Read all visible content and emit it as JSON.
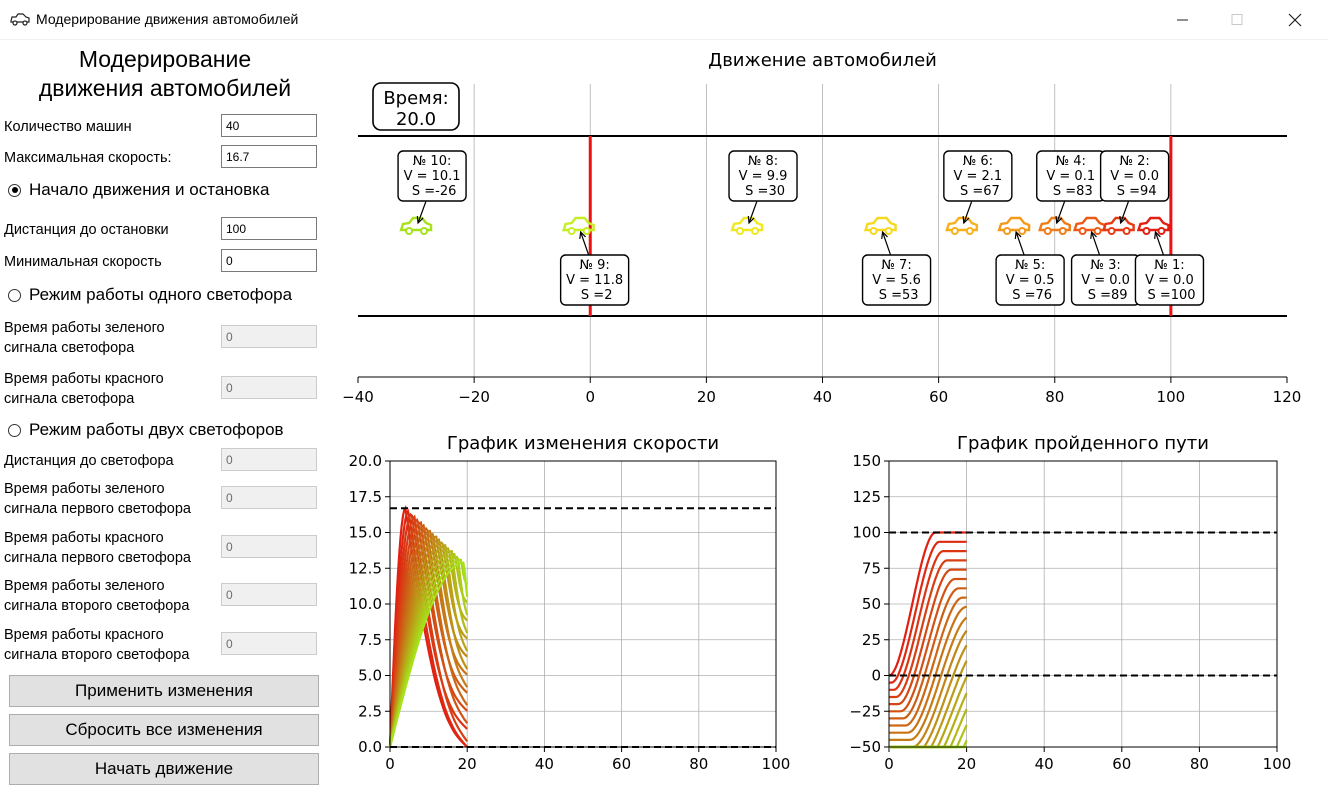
{
  "window": {
    "title": "Модерирование движения автомобилей",
    "icon": "car-icon",
    "controls": [
      "minimize-icon",
      "maximize-icon",
      "close-icon"
    ]
  },
  "panel": {
    "title": "Модерирование\nдвижения автомобилей",
    "car_count": {
      "label": "Количество машин",
      "value": "40"
    },
    "max_speed": {
      "label": "Максимальная скорость:",
      "value": "16.7"
    },
    "mode1": {
      "label": "Начало движения и остановка",
      "selected": true
    },
    "stop_distance": {
      "label": "Дистанция до остановки",
      "value": "100"
    },
    "min_speed": {
      "label": "Минимальная скорость",
      "value": "0"
    },
    "mode2": {
      "label": "Режим работы одного светофора",
      "selected": false
    },
    "green_time": {
      "label": "Время работы зеленого\nсигнала светофора",
      "value": "0"
    },
    "red_time": {
      "label": "Время работы красного\n сигнала светофора",
      "value": "0"
    },
    "mode3": {
      "label": "Режим работы двух светофоров",
      "selected": false
    },
    "light_distance": {
      "label": "Дистанция до светофора",
      "value": "0"
    },
    "green1_time": {
      "label": "Время работы зеленого\nсигнала первого светофора",
      "value": "0"
    },
    "red1_time": {
      "label": "Время работы красного\nсигнала первого светофора",
      "value": "0"
    },
    "green2_time": {
      "label": "Время работы зеленого\nсигнала второго светофора",
      "value": "0"
    },
    "red2_time": {
      "label": "Время работы красного\nсигнала второго светофора",
      "value": "0"
    },
    "apply_label": "Применить изменения",
    "reset_label": "Сбросить все изменения",
    "start_label": "Начать движение"
  },
  "chart_data": [
    {
      "type": "scatter",
      "title": "Движение автомобилей",
      "time_box": "Время:\n20.0",
      "xlim": [
        -40,
        120
      ],
      "x_ticks": [
        "−40",
        "−20",
        "0",
        "20",
        "40",
        "60",
        "80",
        "100",
        "120"
      ],
      "grid": "vertical",
      "road_edges": "top and bottom black lines",
      "stop_lines": [
        0,
        100
      ],
      "cars": [
        {
          "x": -30,
          "color": "#a6e21a",
          "label": "№ 10:\nV = 10.1\n S =-26",
          "above": true
        },
        {
          "x": -2,
          "color": "#c6ee22",
          "label": "№ 9:\nV = 11.8\n S =2",
          "above": false
        },
        {
          "x": 27,
          "color": "#f0e820",
          "label": "№ 8:\nV = 9.9\n S =30",
          "above": true
        },
        {
          "x": 50,
          "color": "#f6d81e",
          "label": "№ 7:\nV = 5.6\n S =53",
          "above": false
        },
        {
          "x": 64,
          "color": "#f6b11c",
          "label": "№ 6:\nV = 2.1\n S =67",
          "above": true
        },
        {
          "x": 73,
          "color": "#f49a1a",
          "label": "№ 5:\nV = 0.5\n S =76",
          "above": false
        },
        {
          "x": 80,
          "color": "#f07c18",
          "label": "№ 4:\nV = 0.1\n S =83",
          "above": true
        },
        {
          "x": 86,
          "color": "#ec5a16",
          "label": "№ 3:\nV = 0.0\n S =89",
          "above": false
        },
        {
          "x": 91,
          "color": "#e63a14",
          "label": "№ 2:\nV = 0.0\n S =94",
          "above": true
        },
        {
          "x": 97,
          "color": "#e11f12",
          "label": "№ 1:\nV = 0.0\n S =100",
          "above": false
        }
      ]
    },
    {
      "type": "line",
      "title": "График изменения скорости",
      "xlim": [
        0,
        100
      ],
      "ylim": [
        0,
        20
      ],
      "x_ticks": [
        "0",
        "20",
        "40",
        "60",
        "80",
        "100"
      ],
      "y_ticks": [
        "0.0",
        "2.5",
        "5.0",
        "7.5",
        "10.0",
        "12.5",
        "15.0",
        "17.5",
        "20.0"
      ],
      "grid": true,
      "hlines": [
        16.7,
        0
      ],
      "series_count": 20,
      "time_end": 20,
      "color_from": "#e11f12",
      "color_to": "#a6e21a"
    },
    {
      "type": "line",
      "title": "График пройденного пути",
      "xlim": [
        0,
        100
      ],
      "ylim": [
        -50,
        150
      ],
      "x_ticks": [
        "0",
        "20",
        "40",
        "60",
        "80",
        "100"
      ],
      "y_ticks": [
        "−50",
        "−25",
        "0",
        "25",
        "50",
        "75",
        "100",
        "125",
        "150"
      ],
      "grid": true,
      "hlines": [
        100,
        0
      ],
      "series_count": 20,
      "time_end": 20,
      "color_from": "#e11f12",
      "color_to": "#a6e21a"
    }
  ]
}
